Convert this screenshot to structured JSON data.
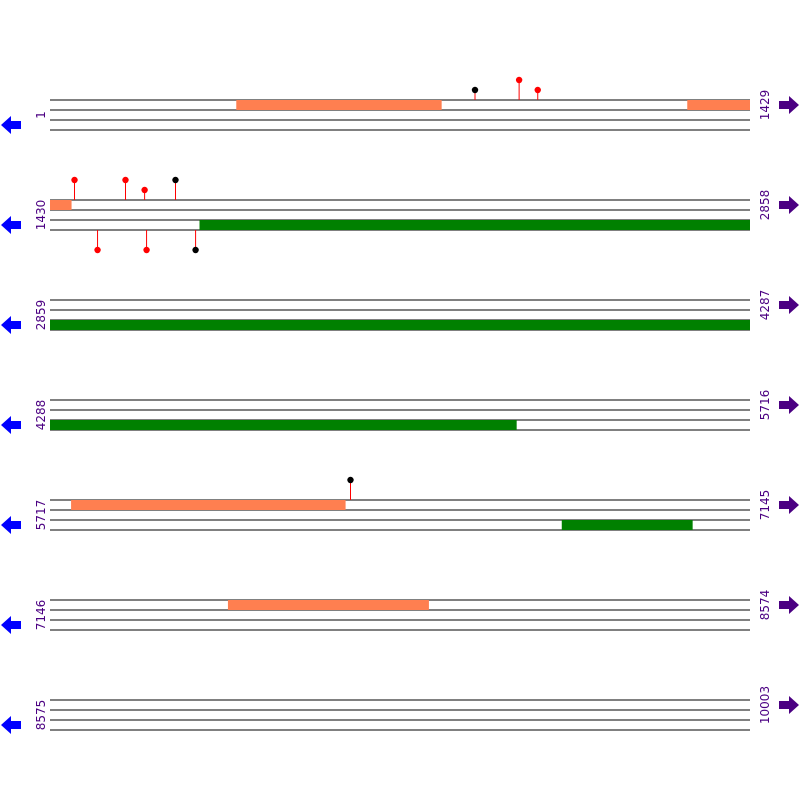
{
  "rows": [
    {
      "start": "1",
      "end": "1429",
      "range": [
        1,
        1429
      ],
      "features": [
        {
          "strand": "top",
          "type": "orf",
          "from": 381,
          "to": 800
        },
        {
          "strand": "top",
          "type": "orf",
          "from": 1301,
          "to": 1429
        }
      ],
      "sites": [
        {
          "strand": "top",
          "pos": 868,
          "color": "black",
          "level": "low"
        },
        {
          "strand": "top",
          "pos": 958,
          "color": "red",
          "level": "high"
        },
        {
          "strand": "top",
          "pos": 996,
          "color": "red",
          "level": "low"
        }
      ]
    },
    {
      "start": "1430",
      "end": "2858",
      "range": [
        1430,
        2858
      ],
      "features": [
        {
          "strand": "top",
          "type": "orf",
          "from": 1430,
          "to": 1474
        },
        {
          "strand": "bottom",
          "type": "cds",
          "from": 1735,
          "to": 2858
        }
      ],
      "sites": [
        {
          "strand": "top",
          "pos": 1480,
          "color": "red",
          "level": "high"
        },
        {
          "strand": "top",
          "pos": 1584,
          "color": "red",
          "level": "high"
        },
        {
          "strand": "top",
          "pos": 1623,
          "color": "red",
          "level": "low"
        },
        {
          "strand": "top",
          "pos": 1686,
          "color": "black",
          "level": "high"
        },
        {
          "strand": "bottom",
          "pos": 1527,
          "color": "red",
          "level": "high"
        },
        {
          "strand": "bottom",
          "pos": 1627,
          "color": "red",
          "level": "high"
        },
        {
          "strand": "bottom",
          "pos": 1727,
          "color": "black",
          "level": "high"
        }
      ]
    },
    {
      "start": "2859",
      "end": "4287",
      "range": [
        2859,
        4287
      ],
      "features": [
        {
          "strand": "bottom",
          "type": "cds",
          "from": 2859,
          "to": 4287
        }
      ],
      "sites": []
    },
    {
      "start": "4288",
      "end": "5716",
      "range": [
        4288,
        5716
      ],
      "features": [
        {
          "strand": "bottom",
          "type": "cds",
          "from": 4288,
          "to": 5240
        }
      ],
      "sites": []
    },
    {
      "start": "5717",
      "end": "7145",
      "range": [
        5717,
        7145
      ],
      "features": [
        {
          "strand": "top",
          "type": "orf",
          "from": 5760,
          "to": 6320
        },
        {
          "strand": "bottom",
          "type": "cds",
          "from": 6761,
          "to": 7028
        }
      ],
      "sites": [
        {
          "strand": "top",
          "pos": 6330,
          "color": "black",
          "level": "high"
        }
      ]
    },
    {
      "start": "7146",
      "end": "8574",
      "range": [
        7146,
        8574
      ],
      "features": [
        {
          "strand": "top",
          "type": "orf",
          "from": 7509,
          "to": 7919
        }
      ],
      "sites": []
    },
    {
      "start": "8575",
      "end": "10003",
      "range": [
        8575,
        10003
      ],
      "features": [],
      "sites": []
    }
  ],
  "colors": {
    "orf": "#ff7f50",
    "cds": "#008000",
    "site_red": "#ff0000",
    "site_black": "#000000",
    "left_arrow": "#0000ff",
    "right_arrow": "#4b0082",
    "labels": "#4b0082"
  },
  "icons": {
    "left": "left-arrow-icon",
    "right": "right-arrow-icon"
  }
}
